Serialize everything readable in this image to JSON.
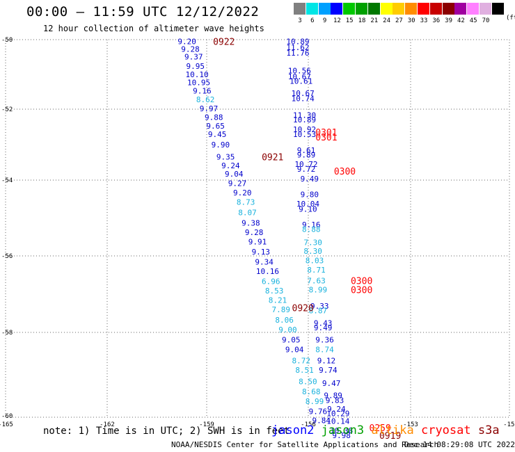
{
  "header": {
    "title": "00:00 — 11:59 UTC 12/12/2022",
    "subtitle": "12 hour collection of altimeter wave heights"
  },
  "legend": {
    "unit": "(ft)",
    "swatches": [
      {
        "color": "#808080",
        "label": "3"
      },
      {
        "color": "#00e5e5",
        "label": "6"
      },
      {
        "color": "#00a0ff",
        "label": "9"
      },
      {
        "color": "#0000ff",
        "label": "12"
      },
      {
        "color": "#00c800",
        "label": "15"
      },
      {
        "color": "#00a000",
        "label": "18"
      },
      {
        "color": "#007800",
        "label": "21"
      },
      {
        "color": "#ffff00",
        "label": "24"
      },
      {
        "color": "#ffcc00",
        "label": "27"
      },
      {
        "color": "#ff8c00",
        "label": "30"
      },
      {
        "color": "#ff0000",
        "label": "33"
      },
      {
        "color": "#c80000",
        "label": "36"
      },
      {
        "color": "#8b0000",
        "label": "39"
      },
      {
        "color": "#a000a0",
        "label": "42"
      },
      {
        "color": "#ff80ff",
        "label": "45"
      },
      {
        "color": "#e0b0e0",
        "label": "70"
      },
      {
        "color": "#000000",
        "label": ""
      }
    ]
  },
  "footer": {
    "note": "note: 1) Time is in UTC; 2) SWH is in feet",
    "satellites": [
      {
        "name": "jason2",
        "color": "#0000ff"
      },
      {
        "name": "jason3",
        "color": "#00a000"
      },
      {
        "name": "altika",
        "color": "#ff8c00"
      },
      {
        "name": "cryosat",
        "color": "#ff0000"
      },
      {
        "name": "s3a",
        "color": "#8b0000"
      }
    ],
    "credit": "NOAA/NESDIS Center for Satellite Applications and Research",
    "stamp": "Dec 14 08:29:08 UTC 2022"
  },
  "chart_data": {
    "type": "scatter",
    "title": "00:00 — 11:59 UTC 12/12/2022",
    "x_ticks": [
      "-165",
      "-162",
      "-159",
      "-156",
      "-153",
      "-150"
    ],
    "y_ticks": [
      "-50",
      "-52",
      "-54",
      "-56",
      "-58",
      "-60"
    ],
    "xlim": [
      -165,
      -150
    ],
    "ylim": [
      -60,
      -50
    ],
    "grid": "dotted",
    "series": [
      {
        "values": [
          {
            "lon": -159.6,
            "lat": -50.05,
            "v": "9.20",
            "color": "#0000cc"
          },
          {
            "lon": -159.5,
            "lat": -50.25,
            "v": "9.28",
            "color": "#0000cc"
          },
          {
            "lon": -159.4,
            "lat": -50.45,
            "v": "9.37",
            "color": "#0000cc"
          },
          {
            "lon": -159.35,
            "lat": -50.7,
            "v": "9.95",
            "color": "#0000cc"
          },
          {
            "lon": -159.3,
            "lat": -50.92,
            "v": "10.10",
            "color": "#0000cc"
          },
          {
            "lon": -159.25,
            "lat": -51.13,
            "v": "10.95",
            "color": "#0000cc"
          },
          {
            "lon": -159.15,
            "lat": -51.35,
            "v": "9.16",
            "color": "#0000cc"
          },
          {
            "lon": -159.05,
            "lat": -51.58,
            "v": "8.62",
            "color": "#1ab2dd"
          },
          {
            "lon": -158.95,
            "lat": -51.82,
            "v": "9.97",
            "color": "#0000cc"
          },
          {
            "lon": -158.8,
            "lat": -52.05,
            "v": "9.88",
            "color": "#0000cc"
          },
          {
            "lon": -158.75,
            "lat": -52.28,
            "v": "9.65",
            "color": "#0000cc"
          },
          {
            "lon": -158.7,
            "lat": -52.5,
            "v": "9.45",
            "color": "#0000cc"
          },
          {
            "lon": -158.6,
            "lat": -52.78,
            "v": "9.90",
            "color": "#0000cc"
          },
          {
            "lon": -158.45,
            "lat": -53.1,
            "v": "9.35",
            "color": "#0000cc"
          },
          {
            "lon": -158.3,
            "lat": -53.33,
            "v": "9.24",
            "color": "#0000cc"
          },
          {
            "lon": -158.2,
            "lat": -53.55,
            "v": "9.04",
            "color": "#0000cc"
          },
          {
            "lon": -158.1,
            "lat": -53.8,
            "v": "9.27",
            "color": "#0000cc"
          },
          {
            "lon": -157.95,
            "lat": -54.05,
            "v": "9.20",
            "color": "#0000cc"
          },
          {
            "lon": -157.85,
            "lat": -54.3,
            "v": "8.73",
            "color": "#1ab2dd"
          },
          {
            "lon": -157.8,
            "lat": -54.58,
            "v": "8.07",
            "color": "#1ab2dd"
          },
          {
            "lon": -157.7,
            "lat": -54.85,
            "v": "9.38",
            "color": "#0000cc"
          },
          {
            "lon": -157.6,
            "lat": -55.1,
            "v": "9.28",
            "color": "#0000cc"
          },
          {
            "lon": -157.5,
            "lat": -55.35,
            "v": "9.91",
            "color": "#0000cc"
          },
          {
            "lon": -157.4,
            "lat": -55.62,
            "v": "9.13",
            "color": "#0000cc"
          },
          {
            "lon": -157.3,
            "lat": -55.88,
            "v": "9.34",
            "color": "#0000cc"
          },
          {
            "lon": -157.2,
            "lat": -56.13,
            "v": "10.16",
            "color": "#0000cc"
          },
          {
            "lon": -157.1,
            "lat": -56.4,
            "v": "6.96",
            "color": "#1ab2dd"
          },
          {
            "lon": -157.0,
            "lat": -56.65,
            "v": "8.53",
            "color": "#1ab2dd"
          },
          {
            "lon": -156.9,
            "lat": -56.9,
            "v": "8.21",
            "color": "#1ab2dd"
          },
          {
            "lon": -156.8,
            "lat": -57.15,
            "v": "7.89",
            "color": "#1ab2dd"
          },
          {
            "lon": -156.7,
            "lat": -57.42,
            "v": "8.06",
            "color": "#1ab2dd"
          },
          {
            "lon": -156.6,
            "lat": -57.68,
            "v": "9.00",
            "color": "#1ab2dd"
          },
          {
            "lon": -156.5,
            "lat": -57.95,
            "v": "9.05",
            "color": "#0000cc"
          },
          {
            "lon": -156.4,
            "lat": -58.2,
            "v": "9.04",
            "color": "#0000cc"
          },
          {
            "lon": -156.2,
            "lat": -58.5,
            "v": "8.72",
            "color": "#1ab2dd"
          },
          {
            "lon": -156.1,
            "lat": -58.75,
            "v": "8.51",
            "color": "#1ab2dd"
          },
          {
            "lon": -156.0,
            "lat": -59.05,
            "v": "8.50",
            "color": "#1ab2dd"
          },
          {
            "lon": -155.9,
            "lat": -59.32,
            "v": "8.68",
            "color": "#1ab2dd"
          },
          {
            "lon": -155.8,
            "lat": -59.58,
            "v": "8.99",
            "color": "#1ab2dd"
          },
          {
            "lon": -155.7,
            "lat": -59.84,
            "v": "9.76",
            "color": "#0000cc"
          },
          {
            "lon": -155.6,
            "lat": -60.08,
            "v": "9.84",
            "color": "#0000cc"
          }
        ]
      },
      {
        "values": [
          {
            "lon": -156.3,
            "lat": -50.05,
            "v": "10.89",
            "color": "#0000cc"
          },
          {
            "lon": -156.3,
            "lat": -50.2,
            "v": "11.62",
            "color": "#0000cc"
          },
          {
            "lon": -156.3,
            "lat": -50.35,
            "v": "11.76",
            "color": "#0000cc"
          },
          {
            "lon": -156.25,
            "lat": -50.82,
            "v": "10.56",
            "color": "#0000cc"
          },
          {
            "lon": -156.25,
            "lat": -50.98,
            "v": "10.67",
            "color": "#0000cc"
          },
          {
            "lon": -156.2,
            "lat": -51.1,
            "v": "10.61",
            "color": "#0000cc"
          },
          {
            "lon": -156.15,
            "lat": -51.42,
            "v": "10.67",
            "color": "#0000cc"
          },
          {
            "lon": -156.15,
            "lat": -51.56,
            "v": "10.74",
            "color": "#0000cc"
          },
          {
            "lon": -156.1,
            "lat": -52.0,
            "v": "11.30",
            "color": "#0000cc"
          },
          {
            "lon": -156.1,
            "lat": -52.12,
            "v": "10.89",
            "color": "#0000cc"
          },
          {
            "lon": -156.1,
            "lat": -52.38,
            "v": "10.92",
            "color": "#0000cc"
          },
          {
            "lon": -156.1,
            "lat": -52.5,
            "v": "10.53",
            "color": "#0000cc"
          },
          {
            "lon": -156.05,
            "lat": -52.93,
            "v": "9.61",
            "color": "#0000cc"
          },
          {
            "lon": -156.05,
            "lat": -53.05,
            "v": "9.89",
            "color": "#0000cc"
          },
          {
            "lon": -156.05,
            "lat": -53.3,
            "v": "10.72",
            "color": "#0000cc"
          },
          {
            "lon": -156.05,
            "lat": -53.43,
            "v": "9.72",
            "color": "#0000cc"
          },
          {
            "lon": -155.95,
            "lat": -53.68,
            "v": "9.49",
            "color": "#0000cc"
          },
          {
            "lon": -155.95,
            "lat": -54.1,
            "v": "9.80",
            "color": "#0000cc"
          },
          {
            "lon": -156.0,
            "lat": -54.35,
            "v": "10.04",
            "color": "#0000cc"
          },
          {
            "lon": -156.0,
            "lat": -54.48,
            "v": "9.10",
            "color": "#0000cc"
          },
          {
            "lon": -155.9,
            "lat": -54.9,
            "v": "9.16",
            "color": "#0000cc"
          },
          {
            "lon": -155.9,
            "lat": -55.02,
            "v": "8.88",
            "color": "#1ab2dd"
          },
          {
            "lon": -155.85,
            "lat": -55.37,
            "v": "7.30",
            "color": "#1ab2dd"
          },
          {
            "lon": -155.85,
            "lat": -55.6,
            "v": "8.30",
            "color": "#1ab2dd"
          },
          {
            "lon": -155.8,
            "lat": -55.85,
            "v": "8.03",
            "color": "#1ab2dd"
          },
          {
            "lon": -155.75,
            "lat": -56.1,
            "v": "8.71",
            "color": "#1ab2dd"
          },
          {
            "lon": -155.75,
            "lat": -56.38,
            "v": "7.63",
            "color": "#1ab2dd"
          },
          {
            "lon": -155.7,
            "lat": -56.62,
            "v": "8.99",
            "color": "#1ab2dd"
          },
          {
            "lon": -155.65,
            "lat": -57.05,
            "v": "9.33",
            "color": "#0000cc"
          },
          {
            "lon": -155.7,
            "lat": -57.17,
            "v": "8.87",
            "color": "#1ab2dd"
          },
          {
            "lon": -155.55,
            "lat": -57.5,
            "v": "9.43",
            "color": "#0000cc"
          },
          {
            "lon": -155.55,
            "lat": -57.62,
            "v": "9.49",
            "color": "#0000cc"
          },
          {
            "lon": -155.5,
            "lat": -57.95,
            "v": "9.36",
            "color": "#0000cc"
          },
          {
            "lon": -155.5,
            "lat": -58.2,
            "v": "8.74",
            "color": "#1ab2dd"
          },
          {
            "lon": -155.45,
            "lat": -58.5,
            "v": "9.12",
            "color": "#0000cc"
          },
          {
            "lon": -155.4,
            "lat": -58.75,
            "v": "9.74",
            "color": "#0000cc"
          },
          {
            "lon": -155.3,
            "lat": -59.1,
            "v": "9.47",
            "color": "#0000cc"
          },
          {
            "lon": -155.25,
            "lat": -59.42,
            "v": "9.89",
            "color": "#0000cc"
          },
          {
            "lon": -155.2,
            "lat": -59.55,
            "v": "9.83",
            "color": "#0000cc"
          },
          {
            "lon": -155.15,
            "lat": -59.78,
            "v": "9.24",
            "color": "#0000cc"
          },
          {
            "lon": -155.1,
            "lat": -59.9,
            "v": "10.29",
            "color": "#0000cc"
          },
          {
            "lon": -155.1,
            "lat": -60.1,
            "v": "10.14",
            "color": "#0000cc"
          },
          {
            "lon": -155.0,
            "lat": -60.35,
            "v": "10.38",
            "color": "#0000cc"
          },
          {
            "lon": -155.0,
            "lat": -60.48,
            "v": "9.98",
            "color": "#0000cc"
          }
        ]
      }
    ],
    "time_labels": [
      {
        "lon": -158.5,
        "lat": -50.05,
        "v": "0922",
        "color": "#8b0000"
      },
      {
        "lon": -157.05,
        "lat": -53.1,
        "v": "0921",
        "color": "#8b0000"
      },
      {
        "lon": -155.45,
        "lat": -52.45,
        "v": "0301",
        "color": "#ff0000"
      },
      {
        "lon": -155.45,
        "lat": -52.58,
        "v": "0301",
        "color": "#ff0000"
      },
      {
        "lon": -154.9,
        "lat": -53.48,
        "v": "0300",
        "color": "#ff0000"
      },
      {
        "lon": -154.4,
        "lat": -56.38,
        "v": "0300",
        "color": "#ff0000"
      },
      {
        "lon": -154.4,
        "lat": -56.62,
        "v": "0300",
        "color": "#ff0000"
      },
      {
        "lon": -156.15,
        "lat": -57.1,
        "v": "0920",
        "color": "#8b0000"
      },
      {
        "lon": -153.85,
        "lat": -60.28,
        "v": "0259",
        "color": "#ff0000"
      },
      {
        "lon": -153.55,
        "lat": -60.48,
        "v": "0919",
        "color": "#8b0000"
      }
    ]
  }
}
